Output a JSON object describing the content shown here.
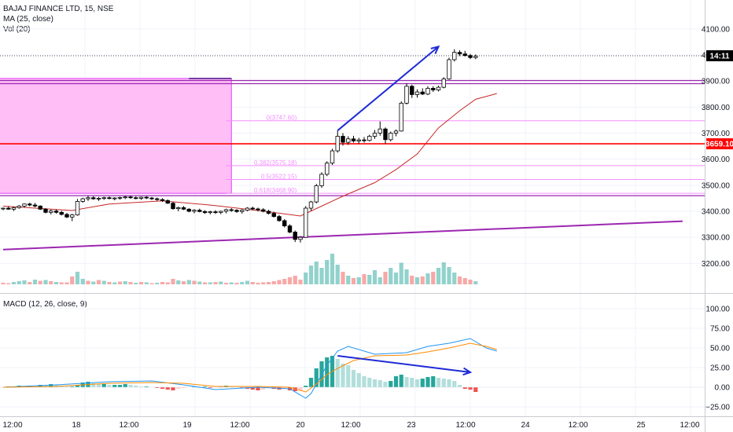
{
  "legend": {
    "symbol": "BAJAJ FINANCE LTD, 15, NSE",
    "ma": "MA (25, close)",
    "vol": "Vol (20)",
    "macd": "MACD (12, 26, close, 9)"
  },
  "colors": {
    "up": "#26a69a",
    "down": "#ef5350",
    "ma_line": "#c62828",
    "fib_line": "#f48fff",
    "zone_fill": "#ffb3f5",
    "purple_line": "#9c27b0",
    "red_line": "#ff0000",
    "arrow": "#1e2bd6",
    "macd_line": "#2196f3",
    "signal_line": "#ff8a00",
    "axis_text": "#131722"
  },
  "chart_data": [
    {
      "type": "candlestick",
      "title": "BAJAJ FINANCE LTD, 15, NSE",
      "ylim": [
        3150,
        4120
      ],
      "y_ticks": [
        3200,
        3300,
        3400,
        3500,
        3600,
        3700,
        3800,
        3900,
        4000,
        4100
      ],
      "x_ticks": [
        "12:00",
        "18",
        "12:00",
        "19",
        "12:00",
        "20",
        "12:00",
        "23",
        "12:00",
        "24",
        "12:00",
        "25",
        "12:00"
      ],
      "price_labels": [
        {
          "text": "14:11",
          "value": 3997,
          "color": "#000000"
        },
        {
          "text": "3659.10",
          "value": 3659.1,
          "color": "#ff0000"
        }
      ],
      "horizontal_levels": [
        {
          "value": 3902,
          "color": "#9c27b0"
        },
        {
          "value": 3890,
          "color": "#9c27b0"
        },
        {
          "value": 3659.1,
          "color": "#ff0000"
        },
        {
          "value": 3460,
          "color": "#9c27b0"
        }
      ],
      "fib_levels": [
        {
          "label": "0(3747.60)",
          "value": 3747.6
        },
        {
          "label": "0.382(3575.18)",
          "value": 3575.18
        },
        {
          "label": "0.5(3522.15)",
          "value": 3522.15
        },
        {
          "label": "0.618(3468.90)",
          "value": 3468.9
        }
      ],
      "zone": {
        "x_from": -2,
        "x_to": 43,
        "y_from": 3468.9,
        "y_to": 3910
      },
      "trendline": {
        "from": [
          0,
          3253
        ],
        "to": [
          128,
          3362
        ]
      },
      "arrow": {
        "from": [
          63,
          3710
        ],
        "to": [
          82,
          4032
        ]
      },
      "candles": [
        [
          3410,
          3414,
          3404,
          3412
        ],
        [
          3412,
          3419,
          3406,
          3408
        ],
        [
          3408,
          3418,
          3401,
          3414
        ],
        [
          3414,
          3424,
          3410,
          3420
        ],
        [
          3420,
          3430,
          3414,
          3428
        ],
        [
          3428,
          3433,
          3419,
          3424
        ],
        [
          3424,
          3432,
          3415,
          3420
        ],
        [
          3420,
          3423,
          3405,
          3408
        ],
        [
          3408,
          3412,
          3392,
          3396
        ],
        [
          3396,
          3407,
          3388,
          3401
        ],
        [
          3401,
          3407,
          3391,
          3396
        ],
        [
          3396,
          3402,
          3384,
          3388
        ],
        [
          3388,
          3394,
          3374,
          3378
        ],
        [
          3378,
          3390,
          3362,
          3386
        ],
        [
          3386,
          3447,
          3383,
          3438
        ],
        [
          3438,
          3452,
          3433,
          3448
        ],
        [
          3448,
          3460,
          3440,
          3452
        ],
        [
          3452,
          3458,
          3444,
          3448
        ],
        [
          3448,
          3455,
          3440,
          3450
        ],
        [
          3450,
          3456,
          3444,
          3452
        ],
        [
          3452,
          3457,
          3446,
          3449
        ],
        [
          3449,
          3454,
          3442,
          3451
        ],
        [
          3451,
          3456,
          3445,
          3453
        ],
        [
          3453,
          3459,
          3447,
          3455
        ],
        [
          3455,
          3460,
          3448,
          3452
        ],
        [
          3452,
          3457,
          3446,
          3450
        ],
        [
          3450,
          3456,
          3444,
          3454
        ],
        [
          3454,
          3458,
          3447,
          3451
        ],
        [
          3451,
          3455,
          3443,
          3448
        ],
        [
          3448,
          3453,
          3440,
          3445
        ],
        [
          3445,
          3450,
          3436,
          3441
        ],
        [
          3441,
          3446,
          3428,
          3431
        ],
        [
          3431,
          3436,
          3406,
          3410
        ],
        [
          3410,
          3418,
          3400,
          3414
        ],
        [
          3414,
          3420,
          3405,
          3408
        ],
        [
          3408,
          3412,
          3396,
          3400
        ],
        [
          3400,
          3408,
          3392,
          3404
        ],
        [
          3404,
          3410,
          3396,
          3399
        ],
        [
          3399,
          3404,
          3390,
          3395
        ],
        [
          3395,
          3402,
          3388,
          3398
        ],
        [
          3398,
          3404,
          3390,
          3396
        ],
        [
          3396,
          3402,
          3389,
          3400
        ],
        [
          3400,
          3410,
          3392,
          3406
        ],
        [
          3406,
          3412,
          3398,
          3404
        ],
        [
          3404,
          3408,
          3394,
          3399
        ],
        [
          3399,
          3408,
          3391,
          3404
        ],
        [
          3404,
          3416,
          3400,
          3412
        ],
        [
          3412,
          3418,
          3404,
          3409
        ],
        [
          3409,
          3414,
          3400,
          3406
        ],
        [
          3406,
          3412,
          3396,
          3400
        ],
        [
          3400,
          3406,
          3388,
          3392
        ],
        [
          3392,
          3398,
          3376,
          3380
        ],
        [
          3380,
          3386,
          3360,
          3364
        ],
        [
          3364,
          3370,
          3338,
          3344
        ],
        [
          3344,
          3350,
          3316,
          3320
        ],
        [
          3320,
          3326,
          3282,
          3292
        ],
        [
          3292,
          3305,
          3280,
          3300
        ],
        [
          3300,
          3420,
          3298,
          3412
        ],
        [
          3412,
          3440,
          3402,
          3436
        ],
        [
          3436,
          3505,
          3430,
          3498
        ],
        [
          3498,
          3550,
          3490,
          3542
        ],
        [
          3542,
          3592,
          3535,
          3585
        ],
        [
          3585,
          3640,
          3578,
          3632
        ],
        [
          3632,
          3710,
          3625,
          3688
        ],
        [
          3688,
          3700,
          3652,
          3665
        ],
        [
          3665,
          3688,
          3655,
          3678
        ],
        [
          3678,
          3690,
          3664,
          3670
        ],
        [
          3670,
          3682,
          3660,
          3674
        ],
        [
          3674,
          3685,
          3664,
          3672
        ],
        [
          3672,
          3694,
          3668,
          3688
        ],
        [
          3688,
          3712,
          3678,
          3700
        ],
        [
          3700,
          3745,
          3690,
          3716
        ],
        [
          3716,
          3722,
          3660,
          3675
        ],
        [
          3675,
          3706,
          3668,
          3700
        ],
        [
          3700,
          3714,
          3688,
          3708
        ],
        [
          3708,
          3822,
          3706,
          3815
        ],
        [
          3815,
          3892,
          3810,
          3880
        ],
        [
          3880,
          3886,
          3835,
          3848
        ],
        [
          3848,
          3868,
          3836,
          3858
        ],
        [
          3858,
          3872,
          3846,
          3850
        ],
        [
          3850,
          3880,
          3846,
          3872
        ],
        [
          3872,
          3880,
          3858,
          3866
        ],
        [
          3866,
          3882,
          3860,
          3876
        ],
        [
          3876,
          3915,
          3872,
          3908
        ],
        [
          3908,
          3990,
          3905,
          3982
        ],
        [
          3982,
          4022,
          3975,
          4010
        ],
        [
          4010,
          4018,
          3996,
          4004
        ],
        [
          4004,
          4016,
          3994,
          3998
        ],
        [
          3998,
          4004,
          3984,
          3990
        ],
        [
          3990,
          4002,
          3984,
          3995
        ]
      ],
      "ma_25": [
        [
          0,
          3420
        ],
        [
          13,
          3403
        ],
        [
          20,
          3428
        ],
        [
          30,
          3440
        ],
        [
          40,
          3422
        ],
        [
          50,
          3398
        ],
        [
          56,
          3382
        ],
        [
          60,
          3420
        ],
        [
          64,
          3458
        ],
        [
          70,
          3510
        ],
        [
          74,
          3560
        ],
        [
          78,
          3620
        ],
        [
          82,
          3720
        ],
        [
          86,
          3786
        ],
        [
          89,
          3830
        ],
        [
          93,
          3852
        ]
      ]
    },
    {
      "type": "bar",
      "title": "Vol (20)",
      "ylim": [
        0,
        100
      ],
      "values": [
        4,
        3,
        6,
        8,
        10,
        6,
        12,
        9,
        11,
        8,
        6,
        5,
        5,
        20,
        32,
        14,
        9,
        7,
        11,
        9,
        6,
        5,
        7,
        8,
        6,
        4,
        6,
        5,
        3,
        4,
        6,
        5,
        14,
        10,
        8,
        11,
        9,
        7,
        5,
        5,
        6,
        7,
        4,
        5,
        4,
        6,
        9,
        6,
        4,
        5,
        6,
        8,
        11,
        14,
        18,
        22,
        12,
        30,
        48,
        58,
        42,
        62,
        78,
        50,
        32,
        22,
        16,
        18,
        26,
        24,
        36,
        18,
        32,
        42,
        30,
        55,
        38,
        22,
        18,
        20,
        28,
        32,
        42,
        56,
        44,
        30,
        20,
        16,
        12,
        8
      ],
      "up": [
        0,
        0,
        1,
        1,
        1,
        0,
        1,
        0,
        1,
        0,
        1,
        0,
        0,
        0,
        1,
        1,
        0,
        1,
        0,
        1,
        0,
        1,
        0,
        1,
        0,
        1,
        0,
        1,
        0,
        1,
        0,
        0,
        0,
        1,
        0,
        1,
        0,
        1,
        0,
        1,
        0,
        1,
        0,
        1,
        0,
        1,
        1,
        0,
        0,
        0,
        0,
        0,
        0,
        0,
        0,
        0,
        0,
        1,
        1,
        1,
        1,
        1,
        1,
        1,
        0,
        1,
        0,
        1,
        0,
        1,
        1,
        1,
        0,
        1,
        1,
        1,
        1,
        0,
        1,
        0,
        1,
        0,
        1,
        1,
        1,
        1,
        0,
        0,
        0,
        1
      ]
    },
    {
      "type": "line",
      "title": "MACD (12, 26, close, 9)",
      "ylim": [
        -33,
        122
      ],
      "y_ticks": [
        -25,
        0,
        25,
        50,
        75,
        100
      ],
      "y_tick_labels": [
        "−25.00",
        "0.00",
        "25.00",
        "50.00",
        "75.00",
        "100.00"
      ],
      "series": [
        {
          "name": "",
          "color": "#2196f3",
          "points": [
            [
              0,
              0
            ],
            [
              10,
              3
            ],
            [
              20,
              7
            ],
            [
              28,
              8
            ],
            [
              34,
              3
            ],
            [
              40,
              -3
            ],
            [
              48,
              0
            ],
            [
              54,
              -2
            ],
            [
              57,
              -14
            ],
            [
              58,
              -8
            ],
            [
              61,
              28
            ],
            [
              63,
              46
            ],
            [
              65,
              52
            ],
            [
              70,
              42
            ],
            [
              76,
              44
            ],
            [
              80,
              52
            ],
            [
              84,
              56
            ],
            [
              88,
              62
            ],
            [
              91,
              50
            ],
            [
              93,
              46
            ]
          ]
        },
        {
          "name": "",
          "color": "#ff8a00",
          "points": [
            [
              0,
              0
            ],
            [
              10,
              1
            ],
            [
              20,
              5
            ],
            [
              28,
              6
            ],
            [
              34,
              5
            ],
            [
              40,
              1
            ],
            [
              48,
              1
            ],
            [
              54,
              0
            ],
            [
              57,
              -6
            ],
            [
              59,
              4
            ],
            [
              61,
              16
            ],
            [
              63,
              24
            ],
            [
              66,
              34
            ],
            [
              70,
              40
            ],
            [
              76,
              41
            ],
            [
              80,
              45
            ],
            [
              84,
              50
            ],
            [
              88,
              56
            ],
            [
              91,
              52
            ],
            [
              93,
              48
            ]
          ]
        }
      ],
      "histogram": [
        0,
        1,
        1,
        2,
        1,
        2,
        1,
        3,
        2,
        4,
        3,
        2,
        1,
        1,
        3,
        6,
        7,
        5,
        4,
        4,
        3,
        3,
        3,
        4,
        3,
        2,
        1,
        1,
        0,
        -1,
        -2,
        -3,
        -4,
        -2,
        -1,
        0,
        1,
        0,
        1,
        -1,
        0,
        1,
        2,
        1,
        0,
        -1,
        -2,
        -3,
        -4,
        -3,
        -1,
        -2,
        -3,
        -2,
        -4,
        -5,
        -4,
        2,
        12,
        24,
        33,
        38,
        40,
        36,
        30,
        28,
        22,
        18,
        14,
        12,
        10,
        9,
        7,
        8,
        14,
        16,
        13,
        12,
        10,
        11,
        13,
        14,
        12,
        11,
        10,
        8,
        3,
        -2,
        -3,
        -6
      ],
      "arrow": {
        "from": [
          63,
          40
        ],
        "to": [
          88,
          19
        ]
      }
    }
  ]
}
